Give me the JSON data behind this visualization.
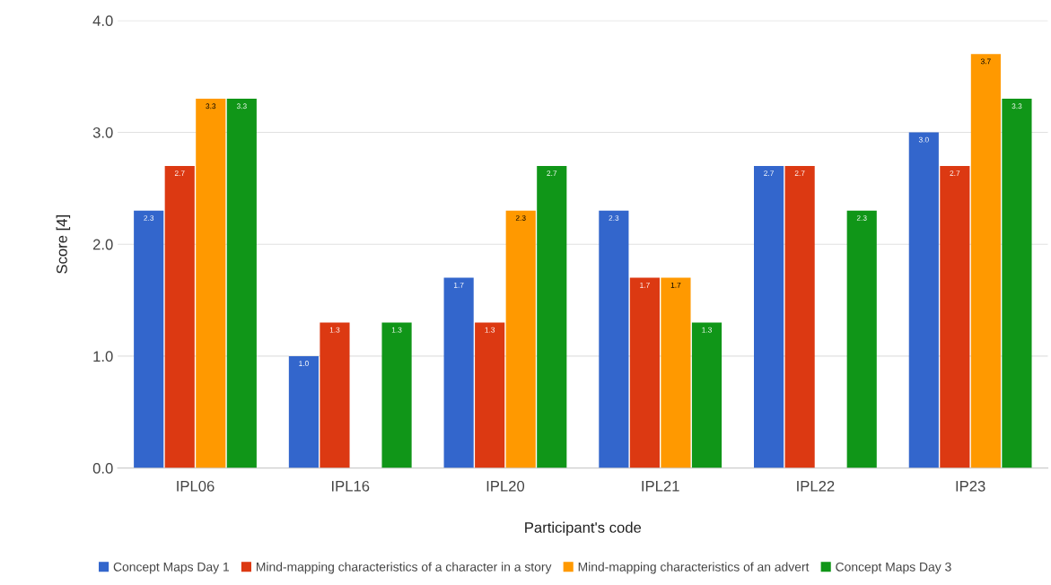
{
  "chart_data": {
    "type": "bar",
    "xlabel": "Participant's code",
    "ylabel": "Score [4]",
    "categories": [
      "IPL06",
      "IPL16",
      "IPL20",
      "IPL21",
      "IPL22",
      "IP23"
    ],
    "series": [
      {
        "name": "Concept Maps Day 1",
        "color": "#3366cc",
        "values": [
          2.3,
          1.0,
          1.7,
          2.3,
          2.7,
          3.0
        ],
        "value_labels": [
          "2.3",
          "1.0",
          "1.7",
          "2.3",
          "2.7",
          "3.0"
        ]
      },
      {
        "name": "Mind-mapping characteristics of a character in a story",
        "color": "#dc3912",
        "values": [
          2.7,
          1.3,
          1.3,
          1.7,
          2.7,
          2.7
        ],
        "value_labels": [
          "2.7",
          "1.3",
          "1.3",
          "1.7",
          "2.7",
          "2.7"
        ]
      },
      {
        "name": "Mind-mapping characteristics of an advert",
        "color": "#ff9900",
        "values": [
          3.3,
          null,
          2.3,
          1.7,
          null,
          3.7
        ],
        "value_labels": [
          "3.3",
          null,
          "2.3",
          "1.7",
          null,
          "3.7"
        ]
      },
      {
        "name": "Concept Maps Day 3",
        "color": "#109618",
        "values": [
          3.3,
          1.3,
          2.7,
          1.3,
          2.3,
          3.3
        ],
        "value_labels": [
          "3.3",
          "1.3",
          "2.7",
          "1.3",
          "2.3",
          "3.3"
        ]
      }
    ],
    "ylim": [
      0,
      4
    ],
    "yticks": [
      {
        "value": 0,
        "label": "0.0"
      },
      {
        "value": 1,
        "label": "1.0"
      },
      {
        "value": 2,
        "label": "2.0"
      },
      {
        "value": 3,
        "label": "3.0"
      },
      {
        "value": 4,
        "label": "4.0"
      }
    ],
    "grid": "y",
    "legend": "bottom"
  }
}
